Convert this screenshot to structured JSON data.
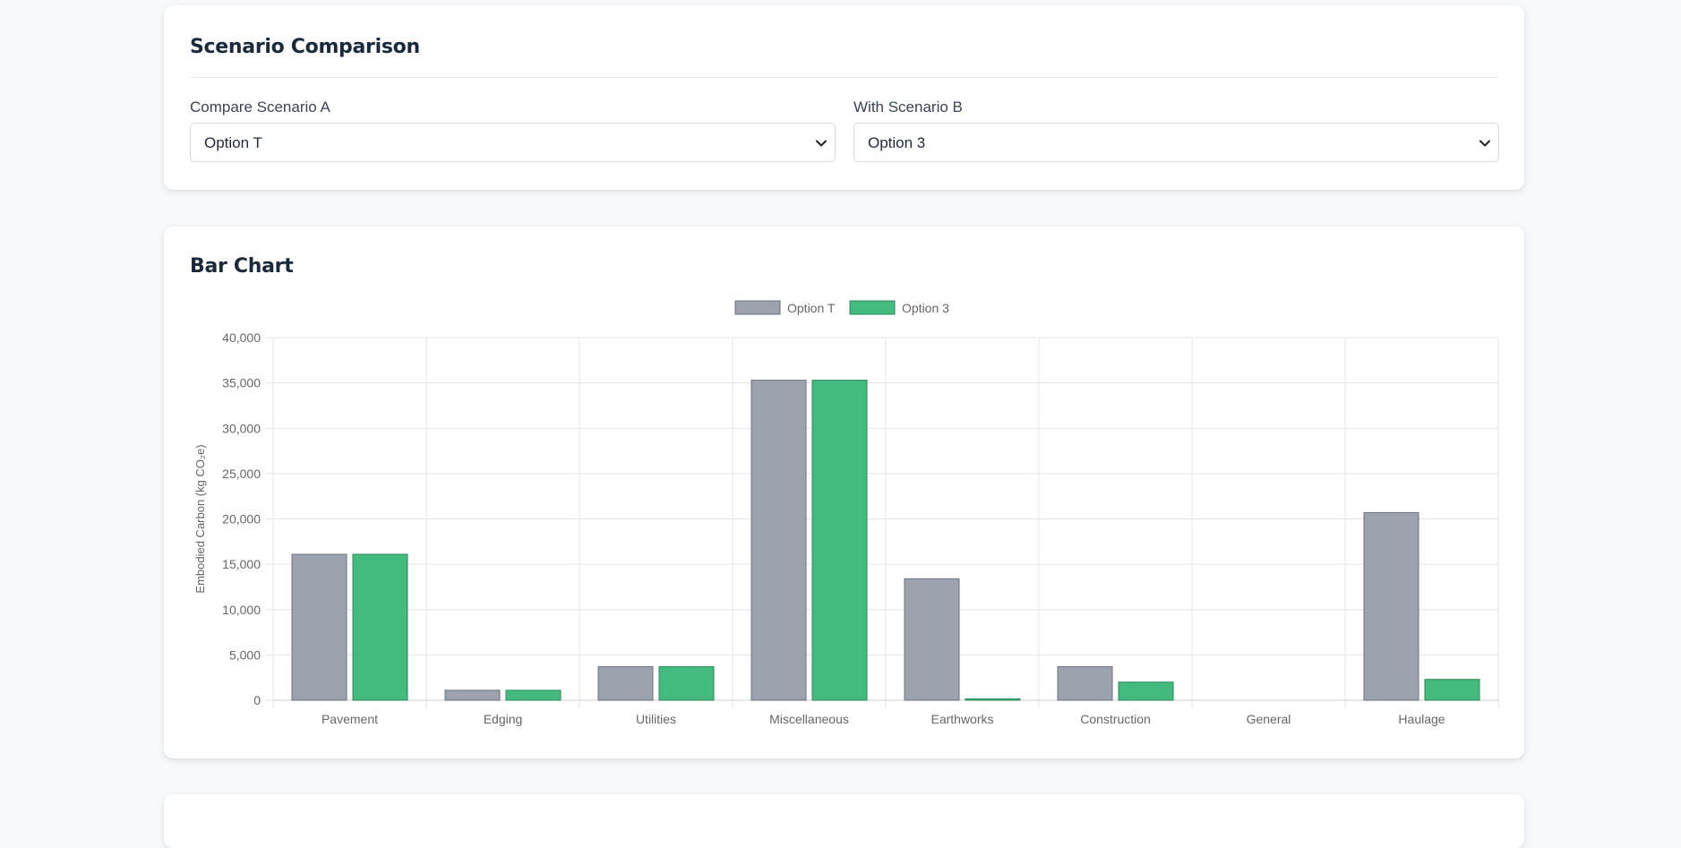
{
  "comparison": {
    "title": "Scenario Comparison",
    "scenario_a": {
      "label": "Compare Scenario A",
      "selected": "Option T"
    },
    "scenario_b": {
      "label": "With Scenario B",
      "selected": "Option 3"
    }
  },
  "chart_card": {
    "title": "Bar Chart"
  },
  "colors": {
    "series_a": "#9ca3af",
    "series_b": "#43bb7f",
    "series_b_border": "#2d8a5a",
    "series_a_border": "#6b7280",
    "grid": "#e5e5e5",
    "text": "#666666"
  },
  "chart_data": {
    "type": "bar",
    "categories": [
      "Pavement",
      "Edging",
      "Utilities",
      "Miscellaneous",
      "Earthworks",
      "Construction",
      "General",
      "Haulage"
    ],
    "series": [
      {
        "name": "Option T",
        "values": [
          16100,
          1100,
          3700,
          35300,
          13400,
          3700,
          0,
          20700
        ]
      },
      {
        "name": "Option 3",
        "values": [
          16100,
          1100,
          3700,
          35300,
          150,
          2000,
          0,
          2300
        ]
      }
    ],
    "ylabel": "Embodied Carbon (kg CO₂e)",
    "xlabel": "",
    "ylim": [
      0,
      40000
    ],
    "yticks": [
      "0",
      "5,000",
      "10,000",
      "15,000",
      "20,000",
      "25,000",
      "30,000",
      "35,000",
      "40,000"
    ],
    "legend": "top-center",
    "grid": true
  }
}
